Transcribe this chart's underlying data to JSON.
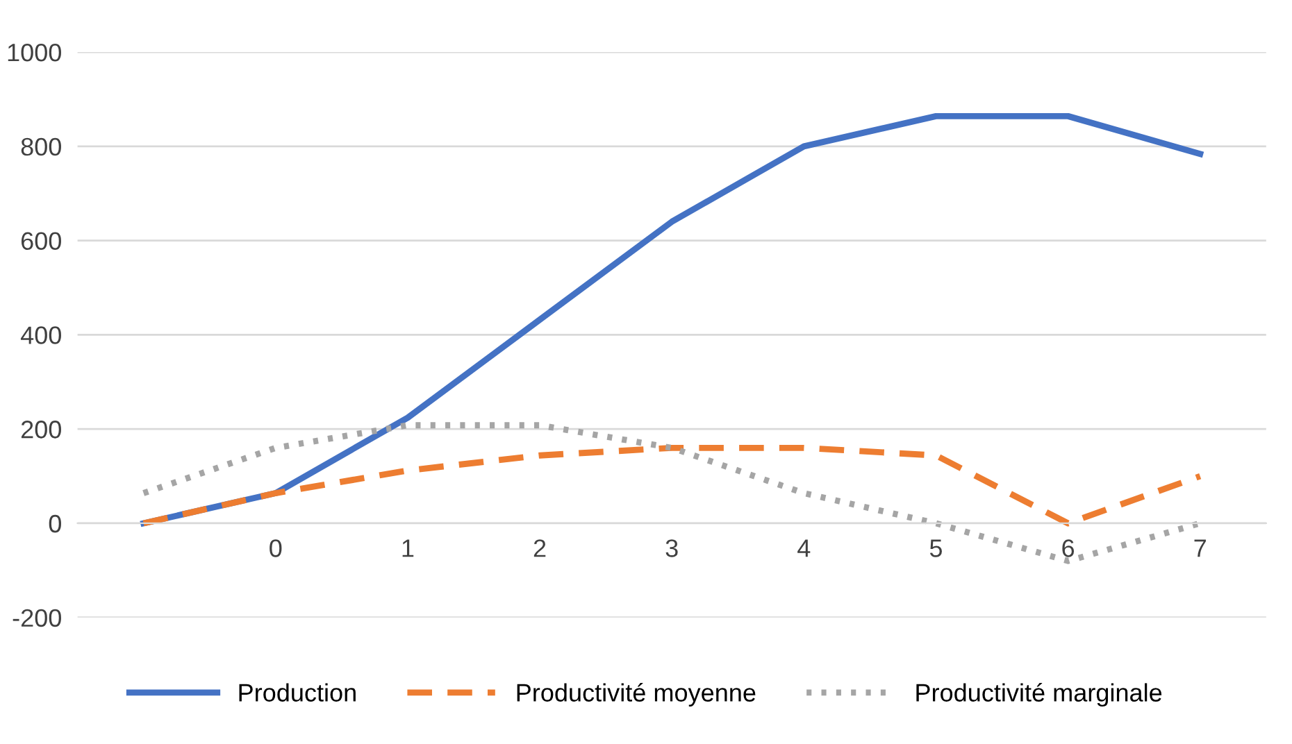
{
  "chart_data": {
    "type": "line",
    "categories": [
      null,
      "0",
      "1",
      "2",
      "3",
      "4",
      "5",
      "6",
      "7"
    ],
    "series": [
      {
        "name": "Production",
        "color": "#4472c4",
        "line_style": "solid",
        "values": [
          0,
          64,
          224,
          432,
          640,
          800,
          864,
          864,
          784
        ]
      },
      {
        "name": "Productivité moyenne",
        "color": "#ed7d31",
        "line_style": "dashed",
        "values": [
          0,
          64,
          112,
          144,
          160,
          160,
          144,
          0,
          100
        ]
      },
      {
        "name": "Productivité marginale",
        "color": "#a5a5a5",
        "line_style": "dotted",
        "values": [
          64,
          160,
          208,
          208,
          160,
          64,
          0,
          -80,
          0
        ]
      }
    ],
    "ylim": [
      -200,
      1000
    ],
    "yticks": [
      -200,
      0,
      200,
      400,
      600,
      800,
      1000
    ],
    "grid": "y",
    "legend": "bottom"
  }
}
